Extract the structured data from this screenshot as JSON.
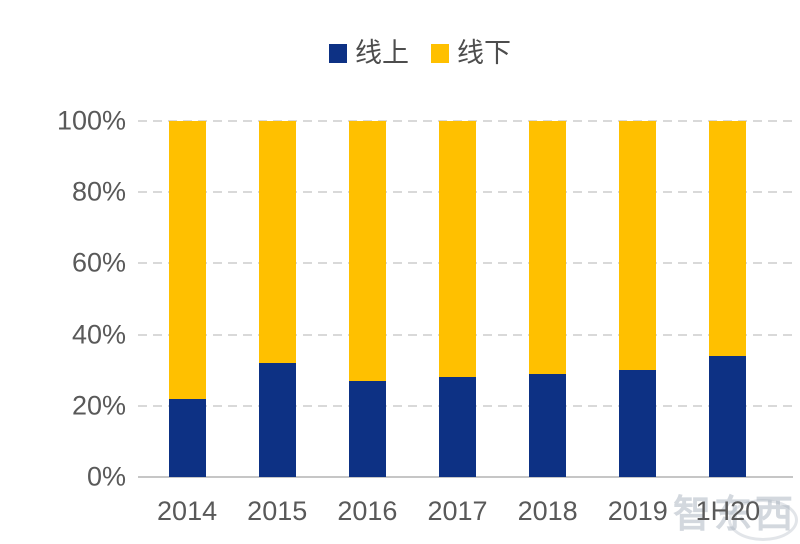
{
  "chart_data": {
    "type": "bar",
    "stacked": true,
    "percent": true,
    "title": "",
    "xlabel": "",
    "ylabel": "",
    "categories": [
      "2014",
      "2015",
      "2016",
      "2017",
      "2018",
      "2019",
      "1H20"
    ],
    "series": [
      {
        "name": "线上",
        "color": "#0d3184",
        "values": [
          22,
          32,
          27,
          28,
          29,
          30,
          34
        ]
      },
      {
        "name": "线下",
        "color": "#ffc000",
        "values": [
          78,
          68,
          73,
          72,
          71,
          70,
          66
        ]
      }
    ],
    "ylim": [
      0,
      100
    ],
    "yticks": [
      {
        "label": "0%",
        "value": 0
      },
      {
        "label": "20%",
        "value": 20
      },
      {
        "label": "40%",
        "value": 40
      },
      {
        "label": "60%",
        "value": 60
      },
      {
        "label": "80%",
        "value": 80
      },
      {
        "label": "100%",
        "value": 100
      }
    ],
    "grid": "horizontal-dashed",
    "legend_position": "top-center"
  },
  "watermark": {
    "text": "智东西"
  },
  "colors": {
    "online": "#0d3184",
    "offline": "#ffc000",
    "axis_text": "#595959",
    "legend_text": "#4d4d4d",
    "gridline": "#d9d9d9",
    "baseline": "#c6c6c6",
    "background": "#ffffff"
  }
}
